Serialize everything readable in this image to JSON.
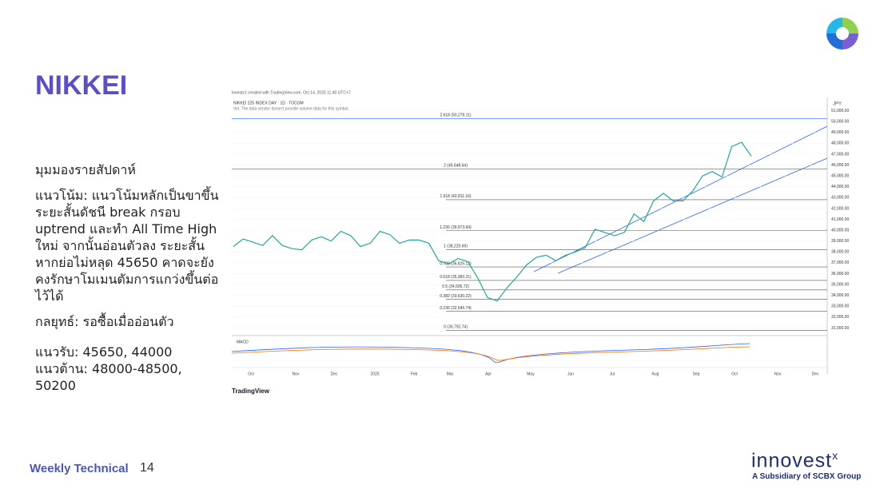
{
  "header": {
    "title": "NIKKEI"
  },
  "body": {
    "heading": "มุมมองรายสัปดาห์",
    "trend": "แนวโน้ม: แนวโน้มหลักเป็นขาขึ้น ระยะสั้นดัชนี break กรอบ uptrend และทำ All Time High ใหม่ จากนั้นอ่อนตัวลง ระยะสั้นหากย่อไม่หลุด 45650 คาดจะยังคงรักษาโมเมนตัมการแกว่งขึ้นต่อไว้ได้",
    "strategy": "กลยุทธ์: รอซื้อเมื่ออ่อนตัว",
    "support": "แนวรับ: 45650, 44000",
    "resistance": "แนวต้าน: 48000-48500, 50200"
  },
  "chart": {
    "type": "line",
    "attribution": "Investx1 created with TradingView.com, Oct 14, 2025 11:40 UTC+7",
    "symbol": "NIKKEI 225 INDEX DAY · 1D · TOCOM",
    "volume_note": "Vol. The data vendor doesn't provide volume data for this symbol.",
    "currency": "JPY",
    "macd_label": "MACD",
    "brand": "TradingView",
    "color": "#26a69a",
    "ylim": [
      30300,
      52000
    ],
    "yticks": [
      {
        "value": 31000,
        "label": "31,000.00"
      },
      {
        "value": 32000,
        "label": "32,000.00"
      },
      {
        "value": 33000,
        "label": "33,000.00"
      },
      {
        "value": 34000,
        "label": "34,000.00"
      },
      {
        "value": 35000,
        "label": "35,000.00"
      },
      {
        "value": 36000,
        "label": "36,000.00"
      },
      {
        "value": 37000,
        "label": "37,000.00"
      },
      {
        "value": 38000,
        "label": "38,000.00"
      },
      {
        "value": 39000,
        "label": "39,000.00"
      },
      {
        "value": 40000,
        "label": "40,000.00"
      },
      {
        "value": 41000,
        "label": "41,000.00"
      },
      {
        "value": 42000,
        "label": "42,000.00"
      },
      {
        "value": 43000,
        "label": "43,000.00"
      },
      {
        "value": 44000,
        "label": "44,000.00"
      },
      {
        "value": 45000,
        "label": "45,000.00"
      },
      {
        "value": 46000,
        "label": "46,000.00"
      },
      {
        "value": 47000,
        "label": "47,000.00"
      },
      {
        "value": 48000,
        "label": "48,000.00"
      },
      {
        "value": 49000,
        "label": "49,000.00"
      },
      {
        "value": 50000,
        "label": "50,000.00"
      },
      {
        "value": 51000,
        "label": "51,000.00"
      }
    ],
    "fib_levels": [
      {
        "value": 50279.11,
        "label": "2.618 (50,279.11)"
      },
      {
        "value": 45648.64,
        "label": "2 (45,648.64)"
      },
      {
        "value": 42811.16,
        "label": "1.618 (42,811.16)"
      },
      {
        "value": 39973.69,
        "label": "1.236 (39,973.69)"
      },
      {
        "value": 38220.69,
        "label": "1 (38,220.69)"
      },
      {
        "value": 36625.12,
        "label": "0.786 (36,625.12)"
      },
      {
        "value": 35383.21,
        "label": "0.618 (35,383.21)"
      },
      {
        "value": 34506.72,
        "label": "0.5 (34,506.72)"
      },
      {
        "value": 33630.22,
        "label": "0.382 (33,630.22)"
      },
      {
        "value": 32545.74,
        "label": "0.236 (32,545.74)"
      },
      {
        "value": 30792.74,
        "label": "0 (30,792.74)"
      }
    ],
    "months": [
      "Oct",
      "Nov",
      "Dec",
      "2025",
      "Feb",
      "Mar",
      "Apr",
      "May",
      "Jun",
      "Jul",
      "Aug",
      "Sep",
      "Oct",
      "Nov",
      "Dec"
    ],
    "values": [
      38500,
      39200,
      38900,
      38600,
      39500,
      38600,
      38300,
      38200,
      39100,
      39400,
      39000,
      39900,
      39500,
      38500,
      38800,
      39900,
      39600,
      38800,
      39100,
      39100,
      38800,
      37200,
      36900,
      37400,
      37100,
      35600,
      33800,
      33500,
      34700,
      35700,
      36800,
      37500,
      37700,
      37200,
      37700,
      38000,
      38400,
      40100,
      39800,
      39500,
      39800,
      41500,
      40800,
      42700,
      43400,
      42700,
      42700,
      43600,
      45000,
      45400,
      44900,
      47700,
      48100,
      46800
    ]
  },
  "footer": {
    "section": "Weekly Technical",
    "page": "14",
    "brand": "innovest",
    "brand_sup": "x",
    "tagline": "A Subsidiary of SCBX Group"
  }
}
